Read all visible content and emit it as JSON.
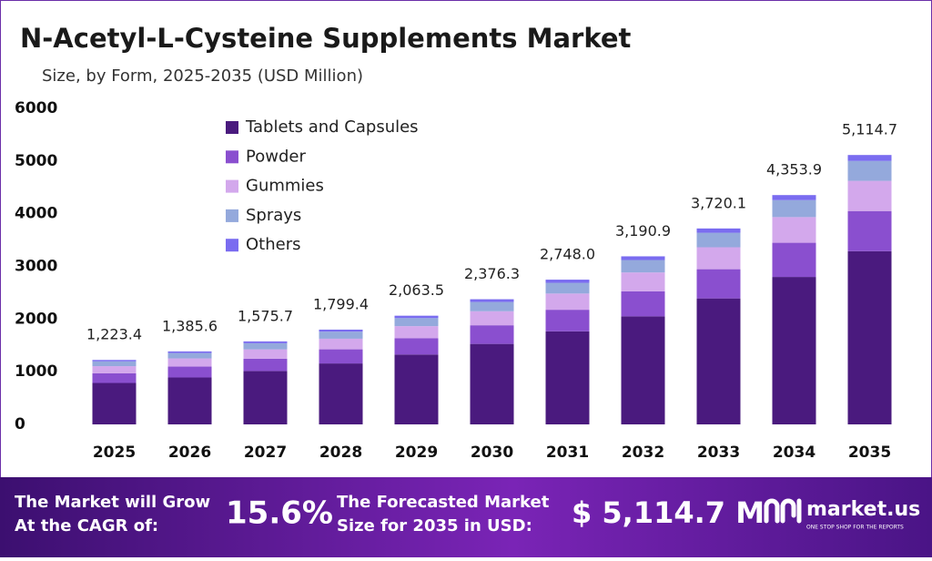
{
  "chart_data": {
    "type": "stacked-bar",
    "title": "N-Acetyl-L-Cysteine Supplements Market",
    "subtitle": "Size, by Form, 2025-2035 (USD Million)",
    "categories": [
      "2025",
      "2026",
      "2027",
      "2028",
      "2029",
      "2030",
      "2031",
      "2032",
      "2033",
      "2034",
      "2035"
    ],
    "series": [
      {
        "name": "Tablets and Capsules",
        "color": "#4a1a7e",
        "values": [
          786.6,
          890.9,
          1013.2,
          1157.0,
          1326.8,
          1527.9,
          1767.0,
          2051.8,
          2392.0,
          2799.6,
          3288.7
        ]
      },
      {
        "name": "Powder",
        "color": "#8a4fcf",
        "values": [
          182.3,
          206.5,
          234.8,
          268.1,
          307.5,
          354.1,
          409.5,
          475.4,
          554.3,
          648.7,
          762.1
        ]
      },
      {
        "name": "Gummies",
        "color": "#d3a8ec",
        "values": [
          137.0,
          155.2,
          176.5,
          201.5,
          231.1,
          266.1,
          307.8,
          357.4,
          416.7,
          487.6,
          572.8
        ]
      },
      {
        "name": "Sprays",
        "color": "#94a9dc",
        "values": [
          90.5,
          102.5,
          116.6,
          133.2,
          152.7,
          175.8,
          203.4,
          236.1,
          275.3,
          322.2,
          378.5
        ]
      },
      {
        "name": "Others",
        "color": "#7a6cf0",
        "values": [
          27.0,
          30.5,
          34.6,
          39.6,
          45.4,
          52.4,
          60.3,
          70.2,
          81.8,
          95.8,
          112.6
        ]
      }
    ],
    "totals": {
      "values": [
        1223.4,
        1385.6,
        1575.7,
        1799.4,
        2063.5,
        2376.3,
        2748.0,
        3190.9,
        3720.1,
        4353.9,
        5114.7
      ],
      "value_labels": [
        "1,223.4",
        "1,385.6",
        "1,575.7",
        "1,799.4",
        "2,063.5",
        "2,376.3",
        "2,748.0",
        "3,190.9",
        "3,720.1",
        "4,353.9",
        "5,114.7"
      ]
    },
    "ylim": [
      0,
      6000
    ],
    "yticks": [
      0,
      1000,
      2000,
      3000,
      4000,
      5000,
      6000
    ],
    "grid": false,
    "legend": "top-left"
  },
  "footer": {
    "growth_text": [
      "The Market will Grow",
      "At the CAGR of:"
    ],
    "cagr": "15.6%",
    "forecast_text": [
      "The Forecasted Market",
      "Size for 2035 in USD:"
    ],
    "forecast_value": "$ 5,114.7 M",
    "brand": "market.us",
    "tagline": "ONE STOP SHOP FOR THE REPORTS"
  }
}
